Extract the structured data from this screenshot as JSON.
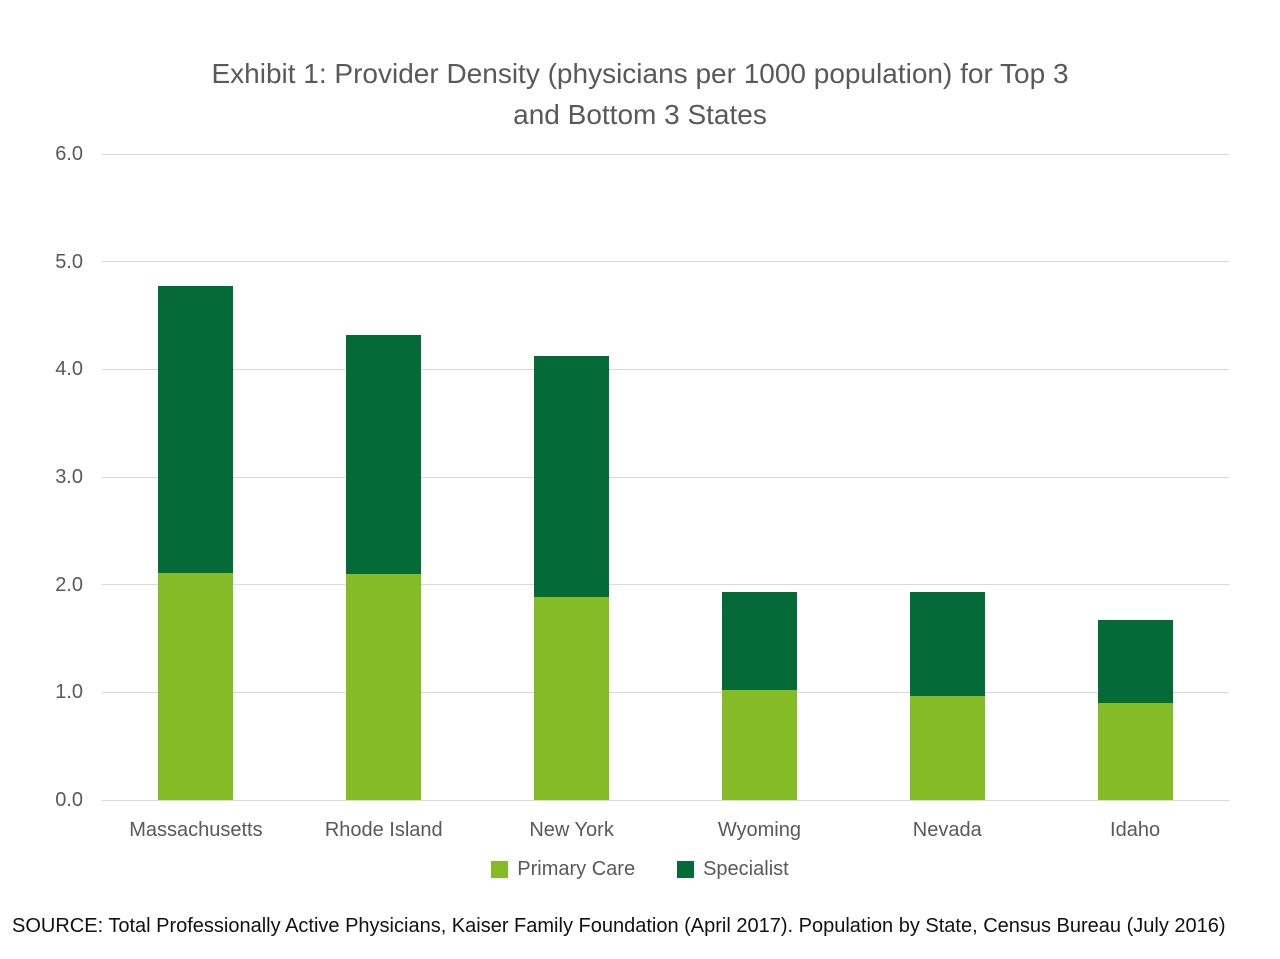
{
  "title_lines": [
    "Exhibit 1: Provider Density (physicians per 1000 population) for Top 3",
    "and Bottom 3 States"
  ],
  "source_text": "SOURCE: Total Professionally Active Physicians, Kaiser Family Foundation (April 2017). Population by State, Census Bureau (July 2016)",
  "colors": {
    "primary_care": "#84BB26",
    "specialist": "#046A38",
    "gridline": "#D9D9D9",
    "axis_text": "#595959",
    "title_text": "#595959",
    "source_text": "#111111",
    "background": "#FFFFFF"
  },
  "chart_data": {
    "type": "bar",
    "stacked": true,
    "title": "Exhibit 1: Provider Density (physicians per 1000 population) for Top 3 and Bottom 3 States",
    "xlabel": "",
    "ylabel": "",
    "categories": [
      "Massachusetts",
      "Rhode Island",
      "New York",
      "Wyoming",
      "Nevada",
      "Idaho"
    ],
    "series": [
      {
        "name": "Primary Care",
        "color": "#84BB26",
        "values": [
          2.11,
          2.1,
          1.89,
          1.02,
          0.97,
          0.9
        ]
      },
      {
        "name": "Specialist",
        "color": "#046A38",
        "values": [
          2.66,
          2.22,
          2.23,
          0.91,
          0.96,
          0.77
        ]
      }
    ],
    "totals": [
      4.77,
      4.32,
      4.12,
      1.93,
      1.93,
      1.67
    ],
    "ylim": [
      0,
      6
    ],
    "yticks": [
      0,
      1,
      2,
      3,
      4,
      5,
      6
    ],
    "ytick_labels": [
      "0.0",
      "1.0",
      "2.0",
      "3.0",
      "4.0",
      "5.0",
      "6.0"
    ],
    "grid": true,
    "legend_position": "bottom"
  }
}
